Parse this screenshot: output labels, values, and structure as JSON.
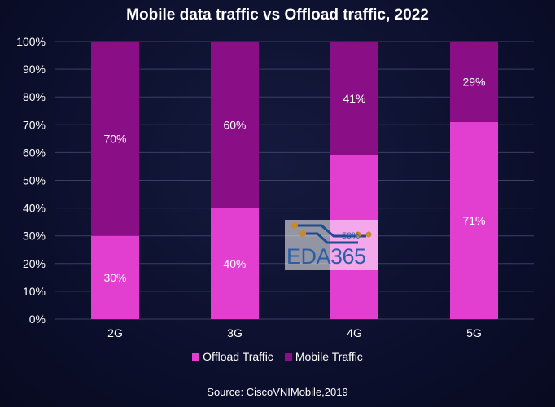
{
  "chart_data": {
    "type": "bar",
    "stacked": true,
    "percent_stacked": true,
    "title": "Mobile data traffic vs Offload traffic, 2022",
    "categories": [
      "2G",
      "3G",
      "4G",
      "5G"
    ],
    "series": [
      {
        "name": "Offload Traffic",
        "values": [
          30,
          40,
          59,
          71
        ],
        "labels": [
          "30%",
          "40%",
          "",
          "71%"
        ],
        "color": "#e23fd1"
      },
      {
        "name": "Mobile Traffic",
        "values": [
          70,
          60,
          41,
          29
        ],
        "labels": [
          "70%",
          "60%",
          "41%",
          "29%"
        ],
        "color": "#8a0f86"
      }
    ],
    "y_ticks": [
      "0%",
      "10%",
      "20%",
      "30%",
      "40%",
      "50%",
      "60%",
      "70%",
      "80%",
      "90%",
      "100%"
    ],
    "ylim": [
      0,
      100
    ],
    "grid": true,
    "legend_position": "bottom",
    "source": "Source: CiscoVNIMobile,2019"
  },
  "watermark": {
    "text": "EDA365",
    "small": "59%"
  },
  "colors": {
    "background": "#0d1030",
    "gridline": "#3a3f63",
    "text": "#ffffff"
  }
}
